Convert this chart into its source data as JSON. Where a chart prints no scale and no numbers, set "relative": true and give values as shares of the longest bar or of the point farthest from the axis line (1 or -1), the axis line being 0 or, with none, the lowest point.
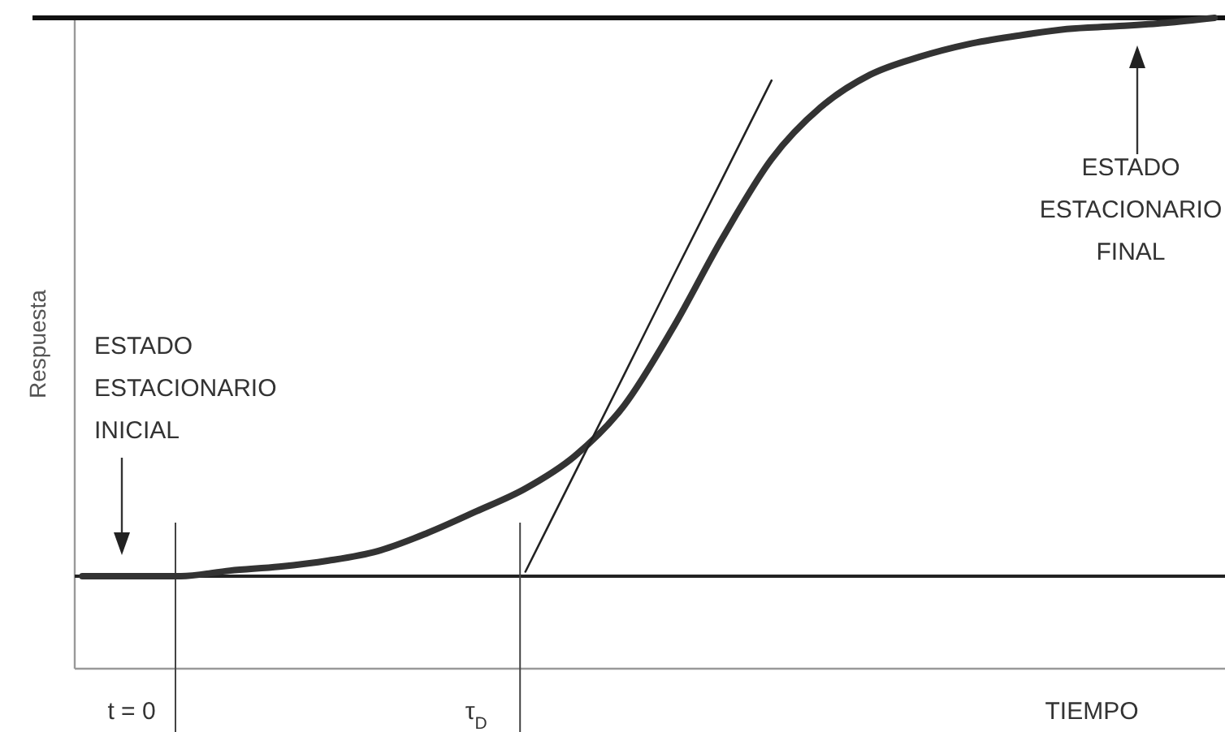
{
  "chart_data": {
    "type": "line",
    "relative": true,
    "xlabel": "TIEMPO",
    "ylabel": "Respuesta",
    "categories": [
      null,
      "t = 0",
      null,
      null,
      null,
      null,
      null,
      null,
      "τ$_{D}$",
      null,
      null,
      null,
      null,
      null,
      null,
      null,
      null,
      null,
      null,
      null,
      null,
      null,
      null,
      null
    ],
    "series": [
      {
        "color": "#333333",
        "values": [
          0,
          0,
          0,
          0.01,
          0.017,
          0.028,
          0.045,
          0.077,
          0.116,
          0.157,
          0.215,
          0.305,
          0.445,
          0.605,
          0.747,
          0.84,
          0.898,
          0.93,
          0.953,
          0.968,
          0.98,
          0.985,
          0.991,
          1.0
        ]
      },
      {
        "color": "#222222",
        "values": [
          null,
          null,
          null,
          null,
          null,
          null,
          null,
          null,
          null,
          0.008,
          0.184,
          0.36,
          0.537,
          0.712,
          0.888,
          null,
          null,
          null,
          null,
          null,
          null,
          null,
          null,
          null
        ]
      }
    ],
    "ref_lines": [
      {
        "axis": "y",
        "value": 0,
        "color": "#222222"
      },
      {
        "axis": "y",
        "value": 1.0,
        "color": "#111111"
      }
    ],
    "annotations": [
      "ESTADO\nESTACIONARIO\nINICIAL",
      "ESTADO\nESTACIONARIO\nFINAL"
    ]
  }
}
